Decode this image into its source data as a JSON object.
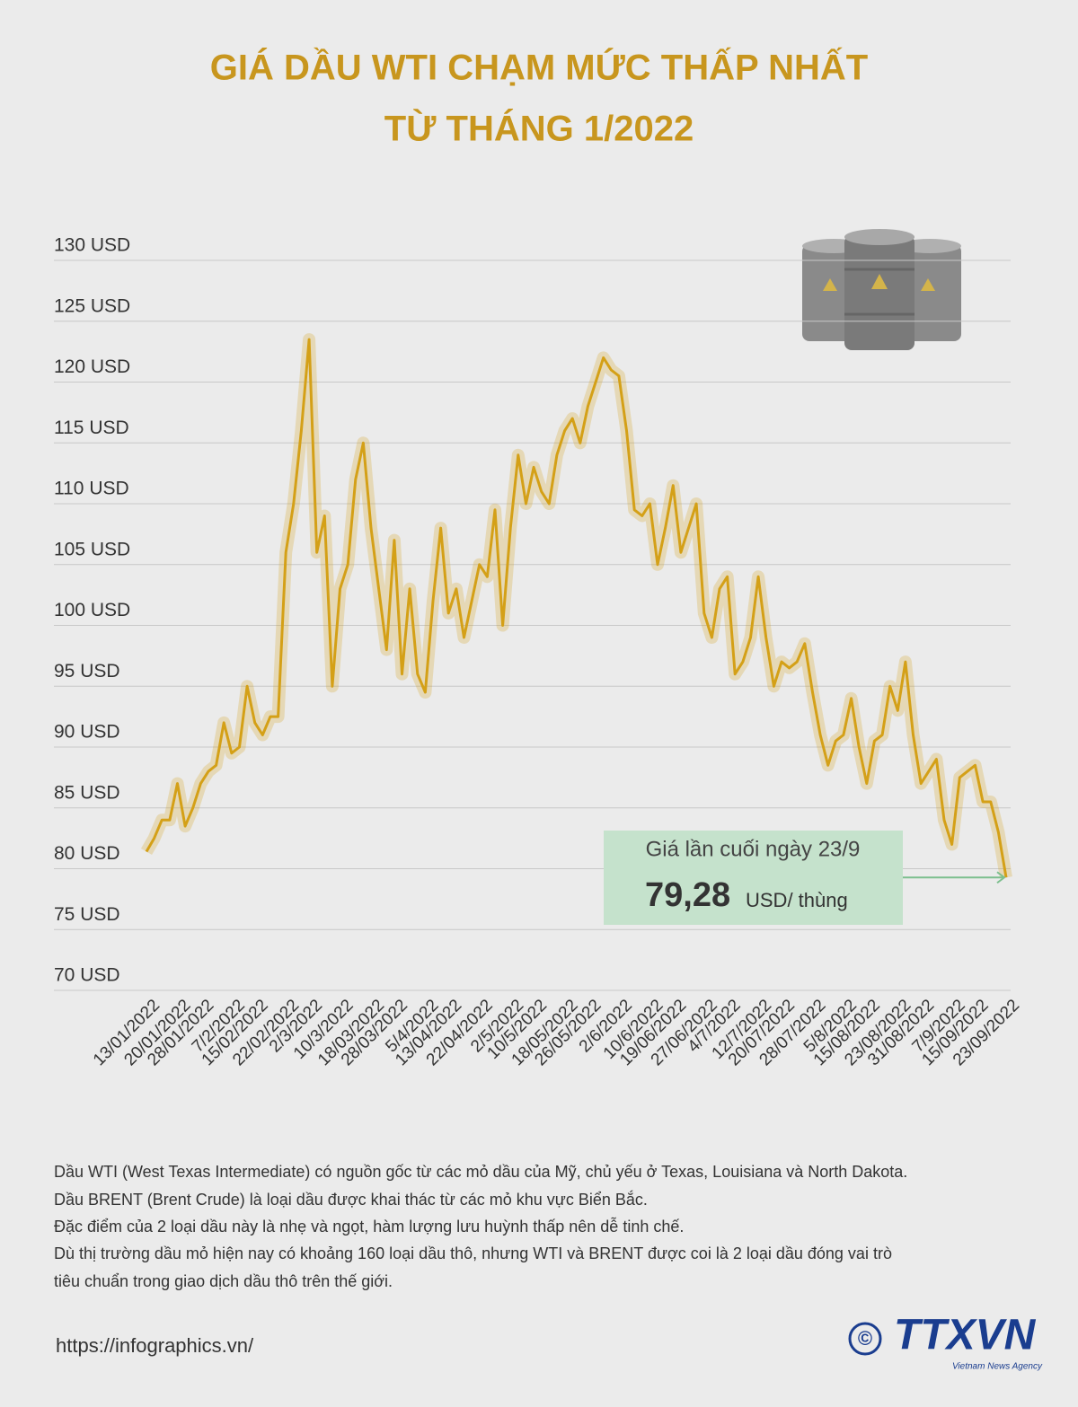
{
  "chart_data": {
    "type": "line",
    "title": "GIÁ DẦU WTI CHẠM MỨC THẤP NHẤT",
    "subtitle": "TỪ THÁNG 1/2022",
    "categories": [
      "13/01/2022",
      null,
      null,
      null,
      "20/01/2022",
      null,
      null,
      "28/01/2022",
      null,
      null,
      null,
      "7/2/2022",
      null,
      null,
      "15/02/2022",
      null,
      null,
      null,
      "22/02/2022",
      null,
      null,
      "2/3/2022",
      null,
      null,
      null,
      "10/3/2022",
      null,
      null,
      null,
      "18/03/2022",
      null,
      null,
      "28/03/2022",
      null,
      null,
      null,
      "5/4/2022",
      null,
      null,
      "13/04/2022",
      null,
      null,
      null,
      "22/04/2022",
      null,
      null,
      null,
      "2/5/2022",
      null,
      null,
      "10/5/2022",
      null,
      null,
      null,
      "18/05/2022",
      null,
      null,
      "26/05/2022",
      null,
      null,
      null,
      "2/6/2022",
      null,
      null,
      null,
      "10/6/2022",
      null,
      null,
      "19/06/2022",
      null,
      null,
      null,
      "27/06/2022",
      null,
      null,
      "4/7/2022",
      null,
      null,
      null,
      "12/7/2022",
      null,
      null,
      "20/07/2022",
      null,
      null,
      null,
      "28/07/2022",
      null,
      null,
      null,
      "5/8/2022",
      null,
      null,
      "15/08/2022",
      null,
      null,
      null,
      "23/08/2022",
      null,
      null,
      "31/08/2022",
      null,
      null,
      null,
      "7/9/2022",
      null,
      null,
      "15/09/2022",
      null,
      null,
      null,
      "23/09/2022"
    ],
    "series": [
      {
        "color": "#d4a017",
        "values": [
          81.4,
          82.5,
          84,
          84,
          87,
          83.5,
          85,
          87,
          88,
          88.5,
          92,
          89.5,
          90,
          95,
          92,
          91,
          92.5,
          92.5,
          106,
          110,
          116,
          123.5,
          106,
          109,
          95,
          103,
          105,
          112,
          115,
          108,
          103,
          98,
          107,
          96,
          103,
          96,
          94.5,
          102,
          108,
          101,
          103,
          99,
          102,
          105,
          104,
          109.5,
          100,
          108,
          114,
          110,
          113,
          111,
          110,
          114,
          116,
          117,
          115,
          118,
          120,
          122,
          121,
          120.5,
          116,
          109.5,
          109,
          110,
          105,
          108,
          111.5,
          106,
          108,
          110,
          101,
          99,
          103,
          104,
          96,
          97,
          99,
          104,
          99,
          95,
          97,
          96.5,
          97,
          98.5,
          94.5,
          91,
          88.5,
          90.5,
          91,
          94,
          90,
          87,
          90.5,
          91,
          95,
          93,
          97,
          91,
          87,
          88,
          89,
          84,
          82,
          87.5,
          88,
          88.5,
          85.5,
          85.5,
          83,
          79.28
        ]
      }
    ],
    "ylim": [
      70,
      130
    ],
    "yticks": [
      {
        "value": 70,
        "label": "70 USD"
      },
      {
        "value": 75,
        "label": "75 USD"
      },
      {
        "value": 80,
        "label": "80 USD"
      },
      {
        "value": 85,
        "label": "85 USD"
      },
      {
        "value": 90,
        "label": "90 USD"
      },
      {
        "value": 95,
        "label": "95 USD"
      },
      {
        "value": 100,
        "label": "100 USD"
      },
      {
        "value": 105,
        "label": "105 USD"
      },
      {
        "value": 110,
        "label": "110 USD"
      },
      {
        "value": 115,
        "label": "115 USD"
      },
      {
        "value": 120,
        "label": "120 USD"
      },
      {
        "value": 125,
        "label": "125 USD"
      },
      {
        "value": 130,
        "label": "130 USD"
      }
    ],
    "grid": true,
    "annotation": {
      "text": "Giá lần cuối ngày 23/9",
      "value": 79.28,
      "value_label": "79,28",
      "unit": "USD/ thùng"
    }
  },
  "notes": [
    "Dầu WTI (West Texas Intermediate) có nguồn gốc từ các mỏ dầu của Mỹ, chủ yếu ở Texas, Louisiana và North Dakota.",
    "Dầu BRENT (Brent Crude) là loại dầu được khai thác từ các mỏ khu vực Biển Bắc.",
    "Đặc điểm của 2 loại dầu này là nhẹ  và ngọt, hàm lượng lưu huỳnh thấp nên dễ tinh chế.",
    "Dù thị trường dầu mỏ hiện nay có khoảng 160 loại dầu thô, nhưng WTI và BRENT được coi là 2 loại dầu đóng vai trò",
    "tiêu chuẩn trong giao dịch dầu thô trên thế giới."
  ],
  "footer": {
    "url": "https://infographics.vn/",
    "copyright": "©",
    "logo": "TTXVN",
    "logo_sub": "Vietnam News Agency"
  }
}
